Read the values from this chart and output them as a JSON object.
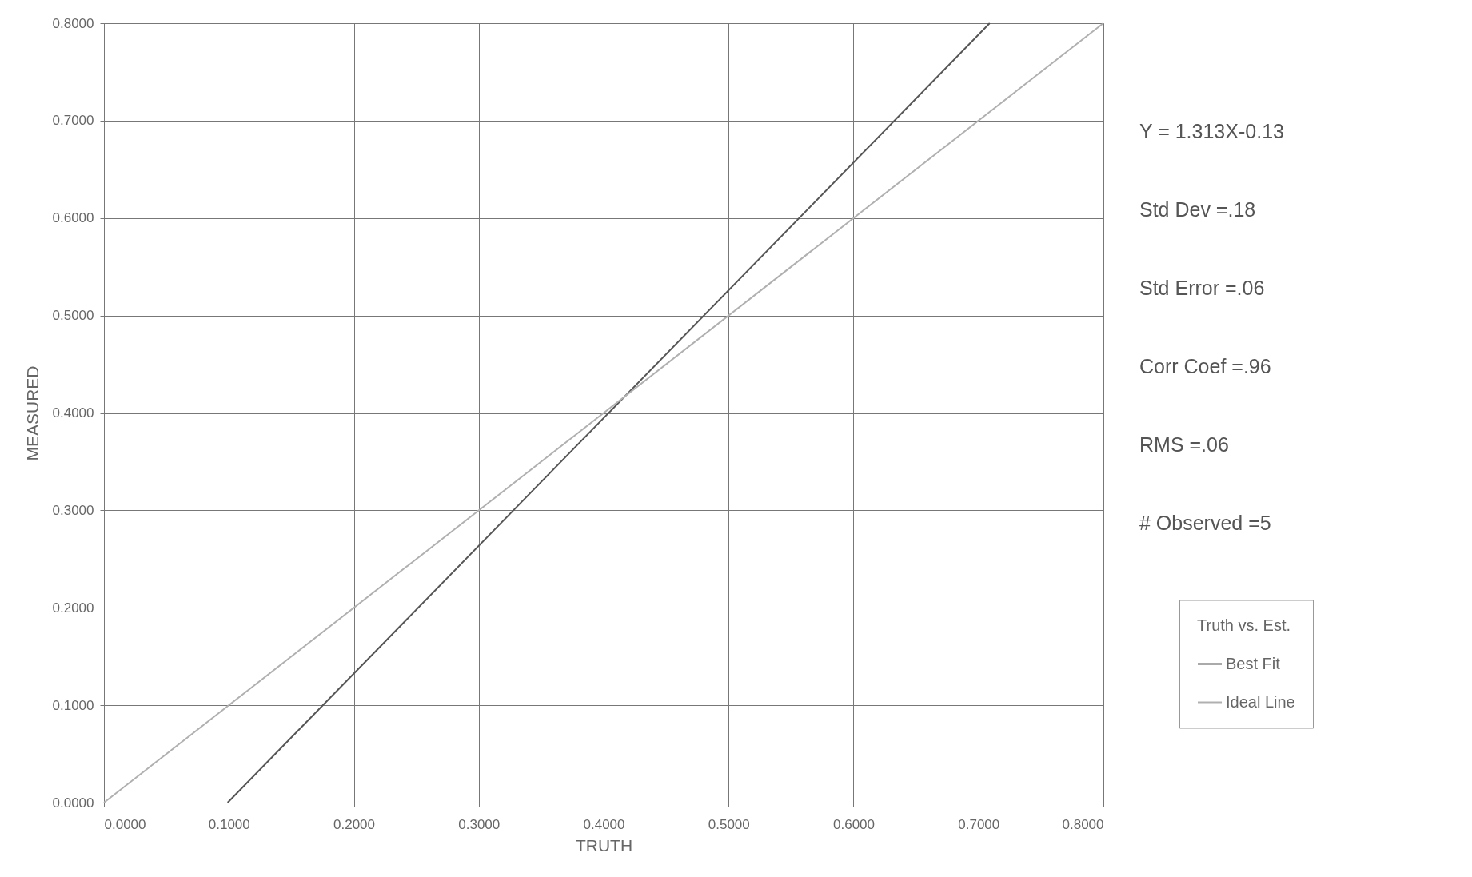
{
  "chart_data": {
    "type": "line",
    "xlabel": "TRUTH",
    "ylabel": "MEASURED",
    "legend_title": "Truth vs. Est.",
    "series": [
      {
        "name": "Best Fit",
        "color": "#555555",
        "x": [
          0.099,
          0.709
        ],
        "values": [
          0.0,
          0.8
        ]
      },
      {
        "name": "Ideal Line",
        "color": "#b0b0b0",
        "x": [
          0.0,
          0.8
        ],
        "values": [
          0.0,
          0.8
        ]
      }
    ],
    "xlim": [
      0,
      0.8
    ],
    "ylim": [
      0,
      0.8
    ],
    "xticks": [
      {
        "value": 0,
        "label": "0.0000"
      },
      {
        "value": 0.1,
        "label": "0.1000"
      },
      {
        "value": 0.2,
        "label": "0.2000"
      },
      {
        "value": 0.3,
        "label": "0.3000"
      },
      {
        "value": 0.4,
        "label": "0.4000"
      },
      {
        "value": 0.5,
        "label": "0.5000"
      },
      {
        "value": 0.6,
        "label": "0.6000"
      },
      {
        "value": 0.7,
        "label": "0.7000"
      },
      {
        "value": 0.8,
        "label": "0.8000"
      }
    ],
    "yticks": [
      {
        "value": 0,
        "label": "0.0000"
      },
      {
        "value": 0.1,
        "label": "0.1000"
      },
      {
        "value": 0.2,
        "label": "0.2000"
      },
      {
        "value": 0.3,
        "label": "0.3000"
      },
      {
        "value": 0.4,
        "label": "0.4000"
      },
      {
        "value": 0.5,
        "label": "0.5000"
      },
      {
        "value": 0.6,
        "label": "0.6000"
      },
      {
        "value": 0.7,
        "label": "0.7000"
      },
      {
        "value": 0.8,
        "label": "0.8000"
      }
    ],
    "annotations": [
      "Y = 1.313X-0.13",
      "Std Dev =.18",
      "Std Error =.06",
      "Corr Coef =.96",
      "RMS =.06",
      "# Observed =5"
    ],
    "grid": true,
    "legend": "right",
    "marker": "none",
    "line_style": "solid"
  }
}
